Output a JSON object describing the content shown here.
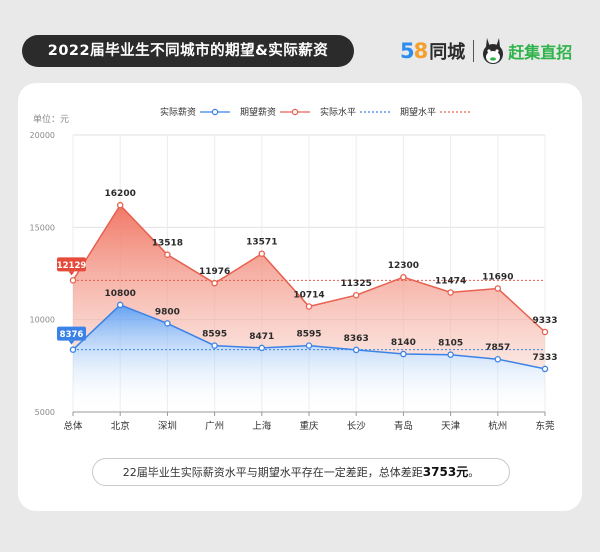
{
  "header": {
    "title": "2022届毕业生不同城市的期望&实际薪资",
    "brand_58": "58",
    "brand_name": "同城",
    "brand_partner": "赶集直招"
  },
  "unit_label": "单位：元",
  "footnote": {
    "text": "22届毕业生实际薪资水平与期望水平存在一定差距，总体差距",
    "emphasis": "3753元",
    "end": "。"
  },
  "colors": {
    "actual": "#3b82e8",
    "expected": "#e8604f",
    "actual_level": "#3b82e8",
    "expected_level": "#e8604f"
  },
  "chart_data": {
    "type": "area",
    "categories": [
      "总体",
      "北京",
      "深圳",
      "广州",
      "上海",
      "重庆",
      "长沙",
      "青岛",
      "天津",
      "杭州",
      "东莞"
    ],
    "series": [
      {
        "name": "实际薪资",
        "values": [
          8376,
          10800,
          9800,
          8595,
          8471,
          8595,
          8363,
          8140,
          8105,
          7857,
          7333
        ]
      },
      {
        "name": "期望薪资",
        "values": [
          12129,
          16200,
          13518,
          11976,
          13571,
          10714,
          11325,
          12300,
          11474,
          11690,
          9333
        ]
      }
    ],
    "reference_lines": [
      {
        "name": "实际水平",
        "value": 8376
      },
      {
        "name": "期望水平",
        "value": 12129
      }
    ],
    "ylim": [
      5000,
      20000
    ],
    "yticks": [
      5000,
      10000,
      15000,
      20000
    ],
    "grid": true,
    "legend": "top-center",
    "ylabel": "单位：元"
  }
}
